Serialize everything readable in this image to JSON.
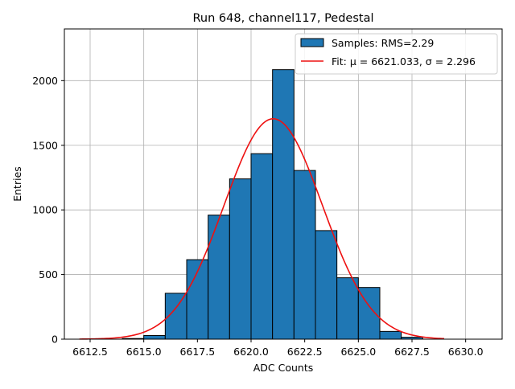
{
  "chart_data": {
    "type": "bar",
    "title": "Run 648, channel117, Pedestal",
    "xlabel": "ADC Counts",
    "ylabel": "Entries",
    "xlim": [
      6611.3,
      6631.7
    ],
    "ylim": [
      0,
      2400
    ],
    "xticks": [
      6612.5,
      6615.0,
      6617.5,
      6620.0,
      6622.5,
      6625.0,
      6627.5,
      6630.0
    ],
    "yticks": [
      0,
      500,
      1000,
      1500,
      2000
    ],
    "grid": true,
    "legend_position": "top-right",
    "bin_width": 1,
    "series": [
      {
        "name": "Samples: RMS=2.29",
        "kind": "histogram",
        "color": "#1f77b4",
        "edge_color": "#000000",
        "bins": [
          {
            "x": 6614,
            "count": 5
          },
          {
            "x": 6615,
            "count": 28
          },
          {
            "x": 6616,
            "count": 355
          },
          {
            "x": 6617,
            "count": 615
          },
          {
            "x": 6618,
            "count": 960
          },
          {
            "x": 6619,
            "count": 1240
          },
          {
            "x": 6620,
            "count": 1435
          },
          {
            "x": 6621,
            "count": 2085
          },
          {
            "x": 6622,
            "count": 1305
          },
          {
            "x": 6623,
            "count": 840
          },
          {
            "x": 6624,
            "count": 475
          },
          {
            "x": 6625,
            "count": 400
          },
          {
            "x": 6626,
            "count": 60
          },
          {
            "x": 6627,
            "count": 15
          }
        ]
      },
      {
        "name": "Fit: μ = 6621.033, σ = 2.296",
        "kind": "gaussian",
        "color": "#ee1111",
        "mu": 6621.033,
        "sigma": 2.296,
        "amplitude": 1705,
        "x_range": [
          6612.0,
          6629.0
        ]
      }
    ]
  }
}
